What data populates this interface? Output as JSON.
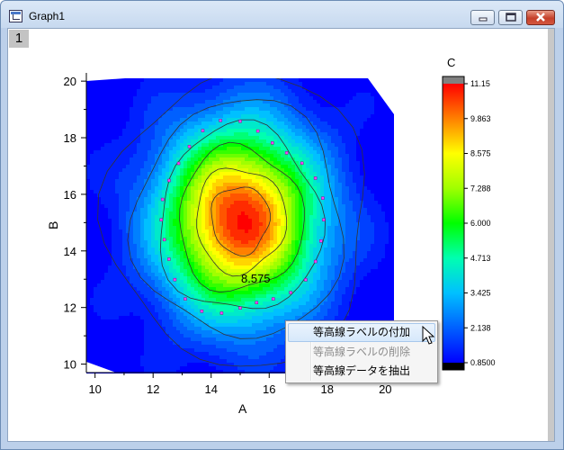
{
  "window": {
    "title": "Graph1",
    "layer_label": "1"
  },
  "context_menu": {
    "items": [
      {
        "label": "等高線ラベルの付加",
        "state": "highlighted"
      },
      {
        "label": "等高線ラベルの削除",
        "state": "disabled"
      },
      {
        "label": "等高線データを抽出",
        "state": "normal"
      }
    ]
  },
  "chart_data": {
    "type": "heatmap",
    "subtype": "contour",
    "xlabel": "A",
    "ylabel": "B",
    "xlim": [
      9.7,
      20.3
    ],
    "ylim": [
      9.7,
      20.1
    ],
    "x_ticks": [
      10,
      12,
      14,
      16,
      18,
      20
    ],
    "y_ticks": [
      10,
      12,
      14,
      16,
      18,
      20
    ],
    "colorbar": {
      "title": "C",
      "range": [
        0.85,
        11.15
      ],
      "ticks": [
        "11.15",
        "9.863",
        "8.575",
        "7.288",
        "6.000",
        "4.713",
        "3.425",
        "2.138",
        "0.8500"
      ],
      "colormap": [
        "#0000ff",
        "#0080ff",
        "#00ffff",
        "#00ff80",
        "#00ff00",
        "#80ff00",
        "#ffff00",
        "#ff8000",
        "#ff0000"
      ]
    },
    "peak": {
      "x": 15.0,
      "y": 15.1,
      "value": 11.15
    },
    "contour_levels": [
      3.425,
      4.713,
      6.0,
      7.288,
      8.575,
      9.863
    ],
    "contour_label": "8.575",
    "contour_label_position": {
      "x": 15.2,
      "y": 12.8
    }
  }
}
